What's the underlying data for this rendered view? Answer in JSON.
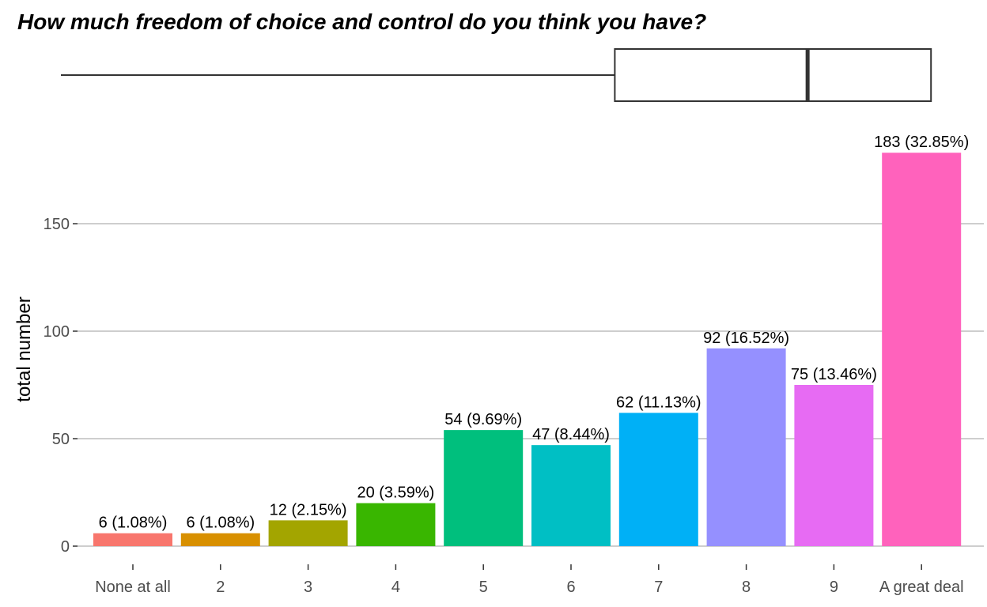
{
  "chart_data": {
    "type": "bar",
    "title": "How much freedom of choice and control do you think you have?",
    "xlabel": "",
    "ylabel": "total number",
    "ylim": [
      0,
      183
    ],
    "yticks": [
      0,
      50,
      100,
      150
    ],
    "grid": true,
    "legend": "none",
    "categories": [
      "None at all",
      "2",
      "3",
      "4",
      "5",
      "6",
      "7",
      "8",
      "9",
      "A great deal"
    ],
    "values": [
      6,
      6,
      12,
      20,
      54,
      47,
      62,
      92,
      75,
      183
    ],
    "labels": [
      "6 (1.08%)",
      "6 (1.08%)",
      "12 (2.15%)",
      "20 (3.59%)",
      "54 (9.69%)",
      "47 (8.44%)",
      "62 (11.13%)",
      "92 (16.52%)",
      "75 (13.46%)",
      "183 (32.85%)"
    ],
    "colors": [
      "#F8766D",
      "#D89000",
      "#A3A500",
      "#39B600",
      "#00BF7D",
      "#00BFC4",
      "#00B0F6",
      "#9590FF",
      "#E76BF3",
      "#FF62BC"
    ],
    "boxplot": {
      "whisker_low": 1,
      "q1": 6.5,
      "median": 8.7,
      "q3": 10
    }
  }
}
